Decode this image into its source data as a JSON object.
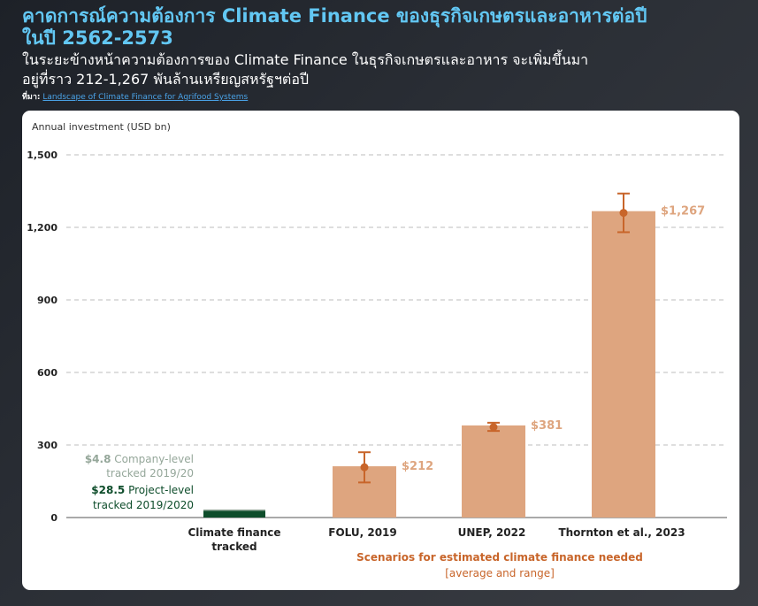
{
  "header": {
    "title_line1": "คาดการณ์ความต้องการ Climate Finance ของธุรกิจเกษตรและอาหารต่อปี",
    "title_line2": "ในปี 2562-2573",
    "subtitle_line1": "ในระยะข้างหน้าความต้องการของ Climate Finance ในธุรกิจเกษตรและอาหาร จะเพิ่มขึ้นมา",
    "subtitle_line2": "อยู่ที่ราว 212-1,267 พันล้านเหรียญสหรัฐฯต่อปี",
    "source_label": "ที่มา:",
    "source_link": "Landscape of Climate Finance for Agrifood Systems"
  },
  "chart_data": {
    "type": "bar",
    "ylabel": "Annual investment (USD bn)",
    "ylim": [
      0,
      1500
    ],
    "yticks": [
      0,
      300,
      600,
      900,
      1200,
      1500
    ],
    "ytick_labels": [
      "0",
      "300",
      "600",
      "900",
      "1,200",
      "1,500"
    ],
    "grid": true,
    "colors": {
      "scenario_bar": "#dea57f",
      "scenario_accent": "#c8652a",
      "project_level": "#0e4d2b",
      "company_level": "#95a79a",
      "grid": "#bdbdbd",
      "axis": "#555555"
    },
    "tracked": {
      "category_line1": "Climate finance",
      "category_line2": "tracked",
      "stack": [
        {
          "name": "Project-level tracked 2019/2020",
          "value": 28.5
        },
        {
          "name": "Company-level tracked 2019/20",
          "value": 4.8
        }
      ],
      "label_company_value": "$4.8",
      "label_company_text1": "Company-level",
      "label_company_text2": "tracked 2019/20",
      "label_project_value": "$28.5",
      "label_project_text1": "Project-level",
      "label_project_text2": "tracked 2019/2020"
    },
    "scenarios": [
      {
        "category": "FOLU, 2019",
        "value": 212,
        "point": 208,
        "low": 145,
        "high": 270,
        "label": "$212"
      },
      {
        "category": "UNEP, 2022",
        "value": 381,
        "point": 374,
        "low": 358,
        "high": 392,
        "label": "$381"
      },
      {
        "category": "Thornton et al., 2023",
        "value": 1267,
        "point": 1260,
        "low": 1180,
        "high": 1340,
        "label": "$1,267"
      }
    ],
    "scenario_group_label": "Scenarios for estimated climate finance needed",
    "scenario_group_sublabel": "[average and range]"
  }
}
